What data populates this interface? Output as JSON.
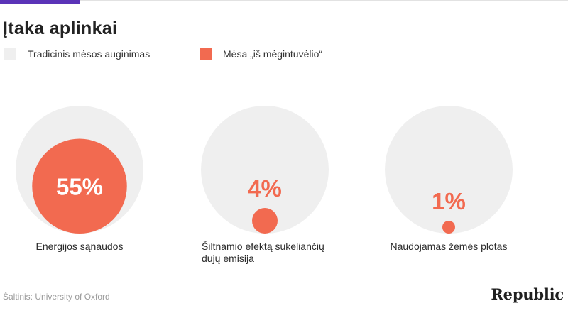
{
  "title": "Įtaka aplinkai",
  "colors": {
    "accent": "#5b33b8",
    "traditional": "#efefef",
    "lab": "#f26a50"
  },
  "legend": {
    "traditional": "Tradicinis mėsos auginimas",
    "lab": "Mėsa „iš mėgintuvėlio“"
  },
  "chart_data": {
    "type": "proportional-circles",
    "title": "Įtaka aplinkai",
    "series": [
      {
        "name": "Tradicinis mėsos auginimas"
      },
      {
        "name": "Mėsa „iš mėgintuvėlio“"
      }
    ],
    "categories": [
      [
        "Energijos sąnaudos"
      ],
      [
        "Šiltnamio efektą sukeliančių",
        "dujų emisija"
      ],
      [
        "Naudojamas žemės plotas"
      ]
    ],
    "traditional_values": [
      100,
      100,
      100
    ],
    "lab_values": [
      55,
      4,
      1
    ],
    "value_labels": [
      "55%",
      "4%",
      "1%"
    ],
    "unit": "%"
  },
  "footer": {
    "source": "Šaltinis: University of Oxford",
    "logo": "Republic"
  }
}
